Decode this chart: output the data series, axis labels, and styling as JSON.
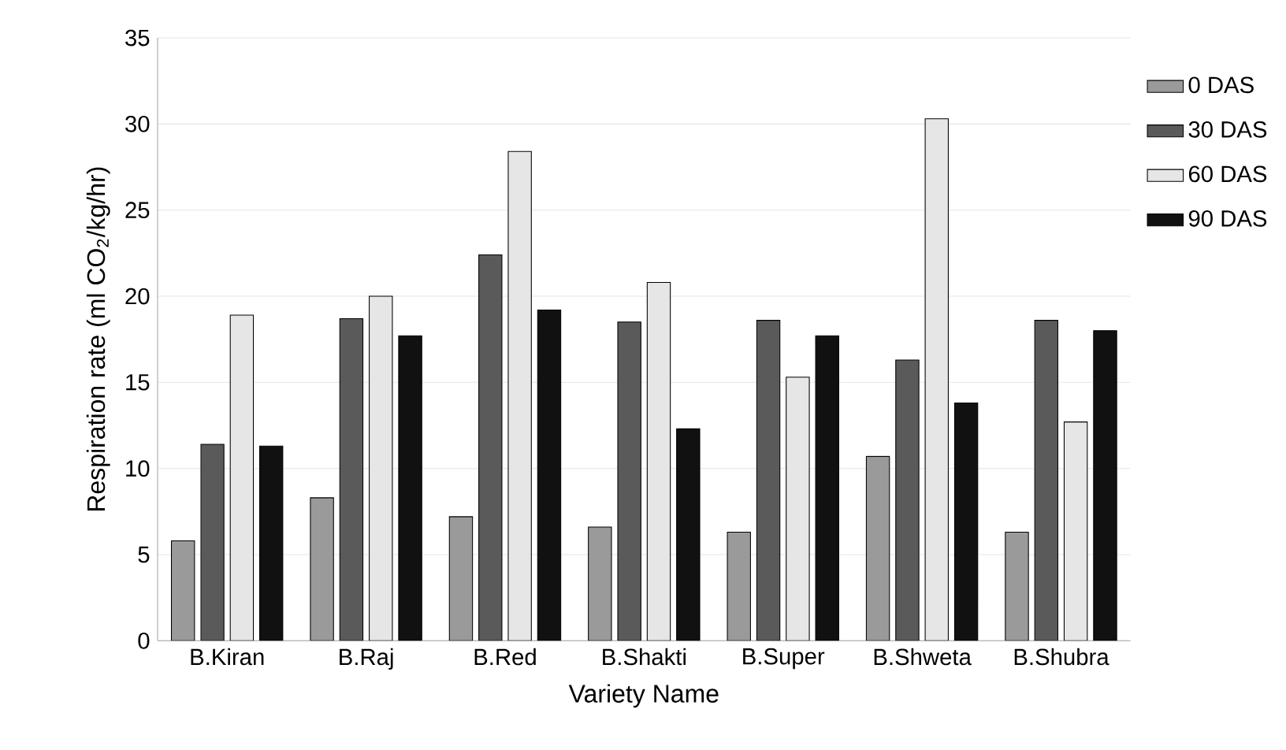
{
  "chart_data": {
    "type": "bar",
    "xlabel": "Variety Name",
    "ylabel": "Respiration rate (ml CO$_{2}$/kg/hr)",
    "categories": [
      "B.Kiran",
      "B.Raj",
      "B.Red",
      "B.Shakti",
      "B.Super",
      "B.Shweta",
      "B.Shubra"
    ],
    "series": [
      {
        "name": "0 DAS",
        "color": "#9a9a9a",
        "values": [
          5.8,
          8.3,
          7.2,
          6.6,
          6.3,
          10.7,
          6.3
        ]
      },
      {
        "name": "30 DAS",
        "color": "#5a5a5a",
        "values": [
          11.4,
          18.7,
          22.4,
          18.5,
          18.6,
          16.3,
          18.6
        ]
      },
      {
        "name": "60 DAS",
        "color": "#e6e6e6",
        "values": [
          18.9,
          20.0,
          28.4,
          20.8,
          15.3,
          30.3,
          12.7
        ]
      },
      {
        "name": "90 DAS",
        "color": "#111111",
        "values": [
          11.3,
          17.7,
          19.2,
          12.3,
          17.7,
          13.8,
          18.0
        ]
      }
    ],
    "ylim": [
      0,
      35
    ],
    "yticks": [
      0,
      5,
      10,
      15,
      20,
      25,
      30,
      35
    ],
    "grid": "y",
    "legend": "right"
  }
}
